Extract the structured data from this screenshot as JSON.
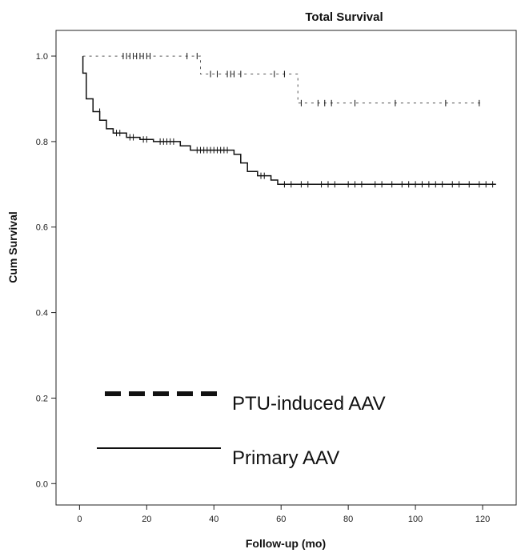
{
  "chart_data": {
    "type": "line",
    "title": "Total Survival",
    "xlabel": "Follow-up (mo)",
    "ylabel": "Cum Survival",
    "xlim": [
      -7,
      130
    ],
    "ylim": [
      -0.05,
      1.06
    ],
    "xticks": [
      0,
      20,
      40,
      60,
      80,
      100,
      120
    ],
    "yticks": [
      0.0,
      0.2,
      0.4,
      0.6,
      0.8,
      1.0
    ],
    "xtick_labels": [
      "0",
      "20",
      "40",
      "60",
      "80",
      "100",
      "120"
    ],
    "ytick_labels": [
      "0.0",
      "0.2",
      "0.4",
      "0.6",
      "0.8",
      "1.0"
    ],
    "grid": false,
    "series": [
      {
        "name": "PTU-induced AAV",
        "line_style": "dashed",
        "step_points": [
          [
            1,
            1.0
          ],
          [
            36,
            1.0
          ],
          [
            36,
            0.958
          ],
          [
            65,
            0.958
          ],
          [
            65,
            0.89
          ],
          [
            120,
            0.89
          ]
        ],
        "censored": [
          [
            13,
            1.0
          ],
          [
            14,
            1.0
          ],
          [
            15,
            1.0
          ],
          [
            16,
            1.0
          ],
          [
            17,
            1.0
          ],
          [
            18,
            1.0
          ],
          [
            19,
            1.0
          ],
          [
            20,
            1.0
          ],
          [
            21,
            1.0
          ],
          [
            32,
            1.0
          ],
          [
            35,
            1.0
          ],
          [
            39,
            0.958
          ],
          [
            41,
            0.958
          ],
          [
            44,
            0.958
          ],
          [
            45,
            0.958
          ],
          [
            46,
            0.958
          ],
          [
            48,
            0.958
          ],
          [
            58,
            0.958
          ],
          [
            61,
            0.958
          ],
          [
            66,
            0.89
          ],
          [
            71,
            0.89
          ],
          [
            73,
            0.89
          ],
          [
            75,
            0.89
          ],
          [
            82,
            0.89
          ],
          [
            94,
            0.89
          ],
          [
            109,
            0.89
          ],
          [
            119,
            0.89
          ]
        ]
      },
      {
        "name": "Primary AAV",
        "line_style": "solid",
        "step_points": [
          [
            1,
            1.0
          ],
          [
            1,
            0.96
          ],
          [
            2,
            0.96
          ],
          [
            2,
            0.9
          ],
          [
            4,
            0.9
          ],
          [
            4,
            0.87
          ],
          [
            6,
            0.87
          ],
          [
            6,
            0.85
          ],
          [
            8,
            0.85
          ],
          [
            8,
            0.83
          ],
          [
            10,
            0.83
          ],
          [
            10,
            0.82
          ],
          [
            14,
            0.82
          ],
          [
            14,
            0.81
          ],
          [
            18,
            0.81
          ],
          [
            18,
            0.805
          ],
          [
            22,
            0.805
          ],
          [
            22,
            0.8
          ],
          [
            30,
            0.8
          ],
          [
            30,
            0.79
          ],
          [
            33,
            0.79
          ],
          [
            33,
            0.78
          ],
          [
            46,
            0.78
          ],
          [
            46,
            0.77
          ],
          [
            48,
            0.77
          ],
          [
            48,
            0.75
          ],
          [
            50,
            0.75
          ],
          [
            50,
            0.73
          ],
          [
            53,
            0.73
          ],
          [
            53,
            0.72
          ],
          [
            57,
            0.72
          ],
          [
            57,
            0.71
          ],
          [
            59,
            0.71
          ],
          [
            59,
            0.7
          ],
          [
            124,
            0.7
          ]
        ],
        "censored": [
          [
            6,
            0.87
          ],
          [
            11,
            0.82
          ],
          [
            12,
            0.82
          ],
          [
            15,
            0.81
          ],
          [
            16,
            0.81
          ],
          [
            19,
            0.805
          ],
          [
            20,
            0.805
          ],
          [
            24,
            0.8
          ],
          [
            25,
            0.8
          ],
          [
            26,
            0.8
          ],
          [
            27,
            0.8
          ],
          [
            28,
            0.8
          ],
          [
            35,
            0.78
          ],
          [
            36,
            0.78
          ],
          [
            37,
            0.78
          ],
          [
            38,
            0.78
          ],
          [
            39,
            0.78
          ],
          [
            40,
            0.78
          ],
          [
            41,
            0.78
          ],
          [
            42,
            0.78
          ],
          [
            43,
            0.78
          ],
          [
            44,
            0.78
          ],
          [
            54,
            0.72
          ],
          [
            55,
            0.72
          ],
          [
            61,
            0.7
          ],
          [
            63,
            0.7
          ],
          [
            66,
            0.7
          ],
          [
            68,
            0.7
          ],
          [
            72,
            0.7
          ],
          [
            74,
            0.7
          ],
          [
            76,
            0.7
          ],
          [
            80,
            0.7
          ],
          [
            82,
            0.7
          ],
          [
            84,
            0.7
          ],
          [
            88,
            0.7
          ],
          [
            90,
            0.7
          ],
          [
            93,
            0.7
          ],
          [
            96,
            0.7
          ],
          [
            98,
            0.7
          ],
          [
            100,
            0.7
          ],
          [
            102,
            0.7
          ],
          [
            104,
            0.7
          ],
          [
            106,
            0.7
          ],
          [
            108,
            0.7
          ],
          [
            111,
            0.7
          ],
          [
            113,
            0.7
          ],
          [
            116,
            0.7
          ],
          [
            119,
            0.7
          ],
          [
            121,
            0.7
          ],
          [
            123,
            0.7
          ]
        ]
      }
    ],
    "legend": {
      "placement": "bottom-left",
      "entries": [
        {
          "label": "PTU-induced AAV",
          "line_style": "dashed"
        },
        {
          "label": "Primary AAV",
          "line_style": "solid"
        }
      ]
    }
  }
}
